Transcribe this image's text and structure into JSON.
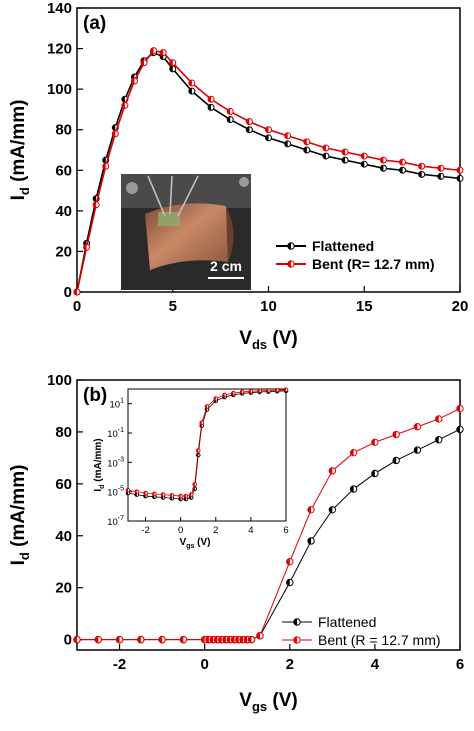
{
  "chart_data": [
    {
      "type": "line",
      "panel_label": "(a)",
      "xlabel_main": "V",
      "xlabel_sub": "ds",
      "xlabel_unit": " (V)",
      "ylabel_main": "I",
      "ylabel_sub": "d",
      "ylabel_unit": " (mA/mm)",
      "xlim": [
        0,
        20
      ],
      "ylim": [
        0,
        140
      ],
      "xticks": [
        "0",
        "5",
        "10",
        "15",
        "20"
      ],
      "yticks": [
        "0",
        "20",
        "40",
        "60",
        "80",
        "100",
        "120",
        "140"
      ],
      "legend_position": "lower-right",
      "photo_scale_label": "2 cm",
      "series": [
        {
          "name": "Flattened",
          "color": "#000000",
          "x": [
            0,
            0.5,
            1,
            1.5,
            2,
            2.5,
            3,
            3.5,
            4,
            4.5,
            5,
            6,
            7,
            8,
            9,
            10,
            11,
            12,
            13,
            14,
            15,
            16,
            17,
            18,
            19,
            20
          ],
          "y": [
            0,
            24,
            46,
            65,
            81,
            95,
            106,
            114,
            118,
            116,
            110,
            99,
            91,
            85,
            80,
            76,
            73,
            70,
            67,
            65,
            63,
            61,
            60,
            58,
            57,
            56
          ]
        },
        {
          "name": "Bent (R= 12.7 mm)",
          "color": "#e00000",
          "x": [
            0,
            0.5,
            1,
            1.5,
            2,
            2.5,
            3,
            3.5,
            4,
            4.5,
            5,
            6,
            7,
            8,
            9,
            10,
            11,
            12,
            13,
            14,
            15,
            16,
            17,
            18,
            19,
            20
          ],
          "y": [
            0,
            22,
            43,
            62,
            78,
            92,
            104,
            113,
            119,
            118,
            113,
            103,
            95,
            89,
            84,
            80,
            77,
            74,
            71,
            69,
            67,
            65,
            64,
            62,
            61,
            60
          ]
        }
      ]
    },
    {
      "type": "line",
      "panel_label": "(b)",
      "xlabel_main": "V",
      "xlabel_sub": "gs",
      "xlabel_unit": " (V)",
      "ylabel_main": "I",
      "ylabel_sub": "d",
      "ylabel_unit": " (mA/mm)",
      "xlim": [
        -3,
        6
      ],
      "ylim": [
        -4,
        100
      ],
      "xticks": [
        "-2",
        "0",
        "2",
        "4",
        "6"
      ],
      "yticks": [
        "0",
        "20",
        "40",
        "60",
        "80",
        "100"
      ],
      "legend_position": "lower-right",
      "series": [
        {
          "name": "Flattened",
          "color": "#000000",
          "x": [
            -3,
            -2.5,
            -2,
            -1.5,
            -1,
            -0.5,
            0,
            0.1,
            0.2,
            0.3,
            0.4,
            0.5,
            0.6,
            0.7,
            0.8,
            0.9,
            1.0,
            1.1,
            1.3,
            2,
            2.5,
            3,
            3.5,
            4,
            4.5,
            5,
            5.5,
            6
          ],
          "y": [
            0,
            0,
            0,
            0,
            0,
            0,
            0,
            0,
            0,
            0,
            0,
            0,
            0,
            0,
            0,
            0,
            0,
            0,
            1.5,
            22,
            38,
            50,
            58,
            64,
            69,
            73,
            77,
            81
          ]
        },
        {
          "name": "Bent (R = 12.7 mm)",
          "color": "#e00000",
          "x": [
            -3,
            -2.5,
            -2,
            -1.5,
            -1,
            -0.5,
            0,
            0.1,
            0.2,
            0.3,
            0.4,
            0.5,
            0.6,
            0.7,
            0.8,
            0.9,
            1.0,
            1.1,
            1.3,
            2,
            2.5,
            3,
            3.5,
            4,
            4.5,
            5,
            5.5,
            6
          ],
          "y": [
            0,
            0,
            0,
            0,
            0,
            0,
            0,
            0,
            0,
            0,
            0,
            0,
            0,
            0,
            0,
            0,
            0,
            0,
            1.5,
            30,
            50,
            65,
            72,
            76,
            79,
            82,
            85,
            89
          ]
        }
      ],
      "inset": {
        "type": "line",
        "scale": "log",
        "xlabel_main": "V",
        "xlabel_sub": "gs",
        "xlabel_unit": " (V)",
        "ylabel_main": "I",
        "ylabel_sub": "d",
        "ylabel_unit": " (mA/mm)",
        "xlim": [
          -3,
          6
        ],
        "ylim_exp": [
          -7,
          2
        ],
        "xticks": [
          "-2",
          "0",
          "2",
          "4",
          "6"
        ],
        "yticks": [
          {
            "base": "10",
            "exp": "1"
          },
          {
            "base": "10",
            "exp": "-1"
          },
          {
            "base": "10",
            "exp": "-3"
          },
          {
            "base": "10",
            "exp": "-5"
          },
          {
            "base": "10",
            "exp": "-7"
          }
        ],
        "series": [
          {
            "name": "Flattened",
            "color": "#000000",
            "x": [
              -3,
              -2.5,
              -2,
              -1.5,
              -1,
              -0.5,
              0,
              0.3,
              0.6,
              0.8,
              1.0,
              1.2,
              1.5,
              2,
              2.5,
              3,
              3.5,
              4,
              4.5,
              5,
              5.5,
              6
            ],
            "log_y": [
              -5.1,
              -5.2,
              -5.3,
              -5.35,
              -5.4,
              -5.45,
              -5.5,
              -5.5,
              -5.4,
              -4.8,
              -2.5,
              -0.5,
              0.6,
              1.2,
              1.45,
              1.6,
              1.7,
              1.75,
              1.8,
              1.82,
              1.85,
              1.87
            ]
          },
          {
            "name": "Bent (R = 12.7 mm)",
            "color": "#e00000",
            "x": [
              -3,
              -2.5,
              -2,
              -1.5,
              -1,
              -0.5,
              0,
              0.3,
              0.6,
              0.8,
              1.0,
              1.2,
              1.5,
              2,
              2.5,
              3,
              3.5,
              4,
              4.5,
              5,
              5.5,
              6
            ],
            "log_y": [
              -4.9,
              -5.0,
              -5.1,
              -5.15,
              -5.2,
              -5.25,
              -5.3,
              -5.3,
              -5.2,
              -4.5,
              -2.2,
              -0.3,
              0.8,
              1.35,
              1.6,
              1.72,
              1.8,
              1.85,
              1.88,
              1.9,
              1.92,
              1.95
            ]
          }
        ]
      }
    }
  ]
}
